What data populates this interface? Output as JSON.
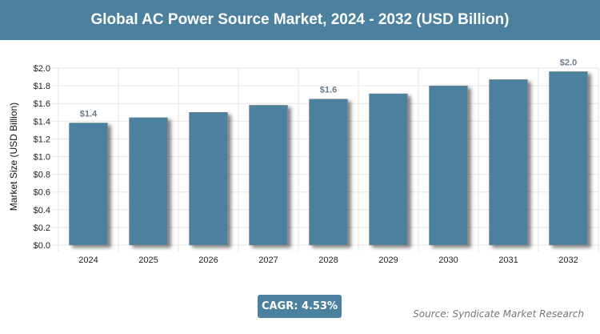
{
  "chart_data": {
    "type": "bar",
    "title": "Global AC Power Source Market, 2024 - 2032 (USD Billion)",
    "ylabel": "Market Size (USD Billion)",
    "xlabel": "",
    "categories": [
      "2024",
      "2025",
      "2026",
      "2027",
      "2028",
      "2029",
      "2030",
      "2031",
      "2032"
    ],
    "values": [
      1.38,
      1.44,
      1.5,
      1.58,
      1.65,
      1.71,
      1.8,
      1.87,
      1.96
    ],
    "data_labels": {
      "0": "$1.4",
      "4": "$1.6",
      "8": "$2.0"
    },
    "ylim": [
      0,
      2.0
    ],
    "yticks": [
      "$0.0",
      "$0.2",
      "$0.4",
      "$0.6",
      "$0.8",
      "$1.0",
      "$1.2",
      "$1.4",
      "$1.6",
      "$1.8",
      "$2.0"
    ],
    "grid": true,
    "bar_color": "#4b819e"
  },
  "cagr": "CAGR: 4.53%",
  "source": "Source: Syndicate Market Research"
}
